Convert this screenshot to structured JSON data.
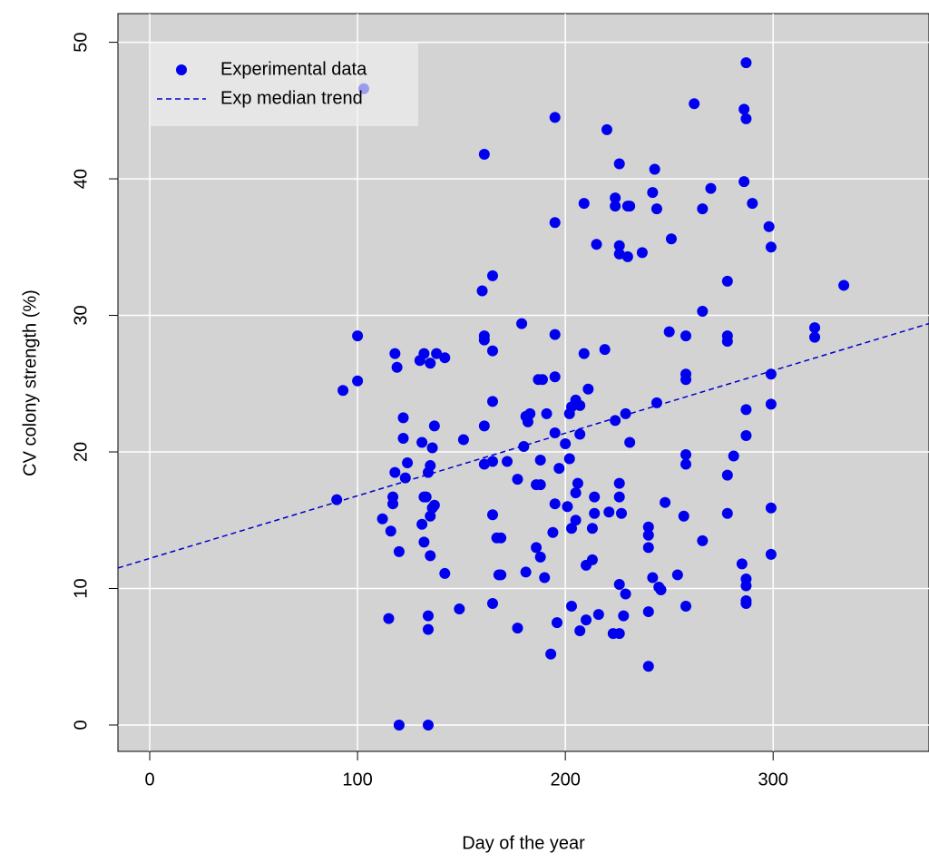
{
  "chart_data": {
    "type": "scatter",
    "x_label": "Day of the year",
    "y_label": "CV colony strength (%)",
    "xlim": [
      -15.3,
      375
    ],
    "ylim": [
      -1.93,
      52.1
    ],
    "xticks": [
      0,
      100,
      200,
      300
    ],
    "yticks": [
      0,
      10,
      20,
      30,
      40,
      50
    ],
    "grid": true,
    "legend": "top-left",
    "series": [
      {
        "name": "Experimental data",
        "color": "#0000ee",
        "x": [
          90,
          93,
          100,
          100,
          103,
          112,
          115,
          116,
          117,
          117,
          118,
          118,
          119,
          120,
          120,
          122,
          122,
          123,
          124,
          130,
          131,
          131,
          132,
          132,
          132,
          133,
          134,
          134,
          134,
          134,
          135,
          135,
          135,
          135,
          136,
          136,
          137,
          137,
          138,
          142,
          142,
          149,
          151,
          160,
          161,
          161,
          161,
          161,
          161,
          165,
          165,
          165,
          165,
          165,
          165,
          167,
          168,
          169,
          169,
          172,
          177,
          177,
          179,
          180,
          181,
          181,
          182,
          183,
          186,
          186,
          187,
          188,
          188,
          188,
          189,
          190,
          191,
          193,
          194,
          195,
          195,
          195,
          195,
          195,
          195,
          196,
          197,
          200,
          201,
          202,
          202,
          203,
          203,
          203,
          205,
          205,
          205,
          206,
          207,
          207,
          207,
          209,
          209,
          210,
          210,
          211,
          213,
          213,
          214,
          214,
          215,
          216,
          219,
          220,
          221,
          223,
          224,
          224,
          224,
          226,
          226,
          226,
          226,
          226,
          226,
          226,
          227,
          228,
          229,
          229,
          230,
          230,
          231,
          231,
          237,
          240,
          240,
          240,
          240,
          240,
          242,
          242,
          243,
          244,
          244,
          245,
          246,
          248,
          250,
          251,
          254,
          257,
          258,
          258,
          258,
          258,
          258,
          258,
          262,
          266,
          266,
          266,
          270,
          278,
          278,
          278,
          278,
          278,
          281,
          285,
          286,
          286,
          287,
          287,
          287,
          287,
          287,
          287,
          287,
          287,
          290,
          298,
          299,
          299,
          299,
          299,
          299,
          320,
          320,
          334
        ],
        "values": [
          16.5,
          24.5,
          28.5,
          25.2,
          46.6,
          15.1,
          7.8,
          14.2,
          16.2,
          16.7,
          27.2,
          18.5,
          26.2,
          12.7,
          0,
          22.5,
          21,
          18.1,
          19.2,
          26.7,
          14.7,
          20.7,
          13.4,
          27.2,
          16.7,
          16.7,
          18.5,
          0,
          8,
          7,
          12.4,
          19,
          15.3,
          26.5,
          20.3,
          15.9,
          16.1,
          21.9,
          27.2,
          26.9,
          11.1,
          8.5,
          20.9,
          31.8,
          41.8,
          28.5,
          28.2,
          21.9,
          19.1,
          32.9,
          23.7,
          19.3,
          27.4,
          15.4,
          8.9,
          13.7,
          11,
          13.7,
          11,
          19.3,
          18,
          7.1,
          29.4,
          20.4,
          22.6,
          11.2,
          22.2,
          22.8,
          17.6,
          13,
          25.3,
          19.4,
          12.3,
          17.6,
          25.3,
          10.8,
          22.8,
          5.2,
          14.1,
          25.5,
          28.6,
          36.8,
          44.5,
          21.4,
          16.2,
          7.5,
          18.8,
          20.6,
          16,
          19.5,
          22.8,
          8.7,
          23.3,
          14.4,
          23.8,
          17,
          15,
          17.7,
          21.3,
          23.4,
          6.9,
          27.2,
          38.2,
          11.7,
          7.7,
          24.6,
          12.1,
          14.4,
          16.7,
          15.5,
          35.2,
          8.1,
          27.5,
          43.6,
          15.6,
          6.7,
          38.6,
          38,
          22.3,
          41.1,
          35.1,
          34.5,
          17.7,
          16.7,
          10.3,
          6.7,
          15.5,
          8,
          9.6,
          22.8,
          34.3,
          38,
          38,
          20.7,
          34.6,
          14.5,
          13.9,
          13,
          8.3,
          4.3,
          10.8,
          39,
          40.7,
          23.6,
          37.8,
          10.1,
          9.9,
          16.3,
          28.8,
          35.6,
          11,
          15.3,
          28.5,
          25.7,
          25.3,
          19.8,
          19.1,
          8.7,
          45.5,
          37.8,
          30.3,
          13.5,
          39.3,
          32.5,
          28.5,
          28.1,
          18.3,
          15.5,
          19.7,
          11.8,
          45.1,
          39.8,
          48.5,
          44.4,
          23.1,
          21.2,
          10.7,
          10.2,
          9.1,
          8.9,
          38.2,
          36.5,
          35,
          25.7,
          23.5,
          15.9,
          12.5,
          29.1,
          28.4,
          32.2
        ]
      },
      {
        "name": "Exp median trend",
        "color": "#0000cc",
        "linestyle": "dashed",
        "x": [
          -15.3,
          375
        ],
        "values": [
          11.5,
          29.4
        ]
      }
    ]
  }
}
